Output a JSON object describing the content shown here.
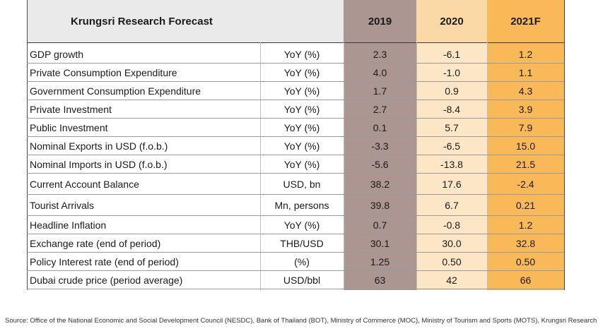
{
  "header": {
    "title": "Krungsri Research Forecast",
    "columns": [
      "2019",
      "2020",
      "2021F"
    ]
  },
  "rows": [
    {
      "label": "GDP growth",
      "unit": "YoY (%)",
      "v2019": "2.3",
      "v2020": "-6.1",
      "v2021": "1.2"
    },
    {
      "label": "Private Consumption Expenditure",
      "unit": "YoY (%)",
      "v2019": "4.0",
      "v2020": "-1.0",
      "v2021": "1.1"
    },
    {
      "label": "Government Consumption Expenditure",
      "unit": "YoY (%)",
      "v2019": "1.7",
      "v2020": "0.9",
      "v2021": "4.3"
    },
    {
      "label": "Private Investment",
      "unit": "YoY (%)",
      "v2019": "2.7",
      "v2020": "-8.4",
      "v2021": "3.9"
    },
    {
      "label": "Public Investment",
      "unit": "YoY (%)",
      "v2019": "0.1",
      "v2020": "5.7",
      "v2021": "7.9"
    },
    {
      "label": "Nominal Exports in USD (f.o.b.)",
      "unit": "YoY (%)",
      "v2019": "-3.3",
      "v2020": "-6.5",
      "v2021": "15.0"
    },
    {
      "label": "Nominal Imports in USD (f.o.b.)",
      "unit": "YoY (%)",
      "v2019": "-5.6",
      "v2020": "-13.8",
      "v2021": "21.5"
    },
    {
      "label": "Current Account Balance",
      "unit": "USD, bn",
      "v2019": "38.2",
      "v2020": "17.6",
      "v2021": "-2.4"
    },
    {
      "label": "Tourist Arrivals",
      "unit": "Mn, persons",
      "v2019": "39.8",
      "v2020": "6.7",
      "v2021": "0.21"
    },
    {
      "label": "Headline Inflation",
      "unit": "YoY (%)",
      "v2019": "0.7",
      "v2020": "-0.8",
      "v2021": "1.2"
    },
    {
      "label": "Exchange rate (end of period)",
      "unit": "THB/USD",
      "v2019": "30.1",
      "v2020": "30.0",
      "v2021": "32.8"
    },
    {
      "label": "Policy Interest rate (end of period)",
      "unit": "(%)",
      "v2019": "1.25",
      "v2020": "0.50",
      "v2021": "0.50"
    },
    {
      "label": "Dubai crude price (period average)",
      "unit": "USD/bbl",
      "v2019": "63",
      "v2020": "42",
      "v2021": "66"
    }
  ],
  "source": "Source: Office of the National Economic and Social Development Council (NESDC), Bank of Thailand (BOT), Ministry of Commerce (MOC), Ministry of Tourism and Sports (MOTS), Krungsri Research",
  "colors": {
    "col2019": "#ab9692",
    "col2020": "#fde6c6",
    "col2021": "#f9b959",
    "header_bg": "#eaeaea"
  }
}
